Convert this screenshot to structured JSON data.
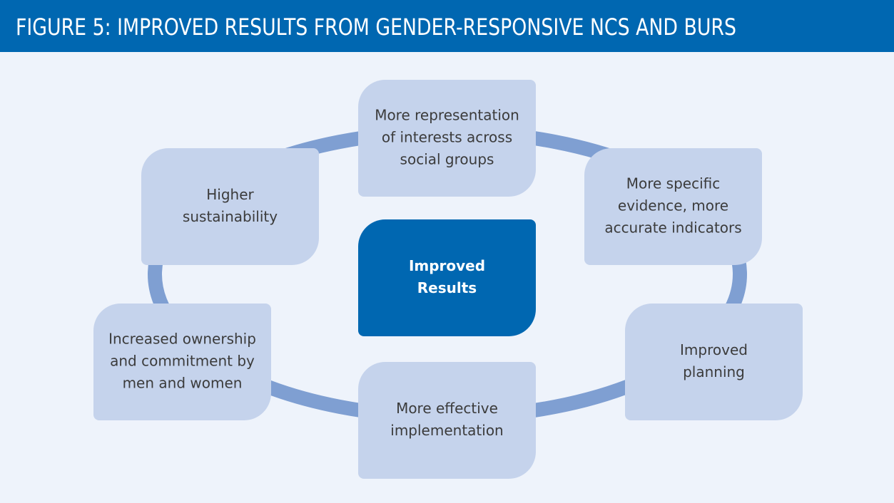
{
  "header": {
    "title": "FIGURE 5: IMPROVED RESULTS FROM GENDER-RESPONSIVE NCS AND BURS"
  },
  "center": {
    "lines": [
      "Improved",
      "Results"
    ]
  },
  "nodes": [
    {
      "lines": [
        "More representation",
        "of interests across",
        "social groups"
      ]
    },
    {
      "lines": [
        "More specific",
        "evidence, more",
        "accurate indicators"
      ]
    },
    {
      "lines": [
        "Improved",
        "planning"
      ]
    },
    {
      "lines": [
        "More effective",
        "implementation"
      ]
    },
    {
      "lines": [
        "Increased ownership",
        "and commitment by",
        "men and women"
      ]
    },
    {
      "lines": [
        "Higher",
        "sustainability"
      ]
    }
  ]
}
